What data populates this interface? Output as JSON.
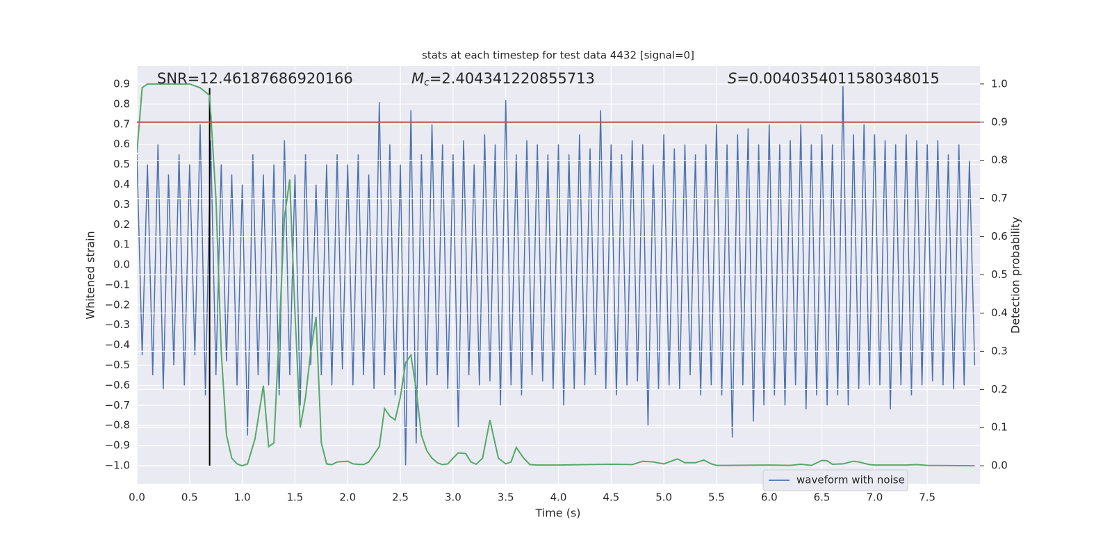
{
  "chart_data": {
    "type": "line",
    "title": "stats at each timestep for test data 4432 [signal=0]",
    "xlabel": "Time (s)",
    "ylabel": "Whitened strain",
    "y2label": "Detection probability",
    "annotations": [
      {
        "label": "SNR",
        "value": "=12.46187686920166",
        "italic": false
      },
      {
        "label": "M",
        "sub": "c",
        "value": "=2.404341220855713",
        "italic": true
      },
      {
        "label": "S",
        "value": "=0.0040354011580348015",
        "italic": true
      }
    ],
    "xlim": [
      0,
      8.0
    ],
    "ylim": [
      -1.09,
      0.99
    ],
    "y2lim": [
      -0.047,
      1.047
    ],
    "grid": true,
    "legend": "lower right",
    "xticks": [
      {
        "value": 0,
        "label": "0.0"
      },
      {
        "value": 0.5,
        "label": "0.5"
      },
      {
        "value": 1,
        "label": "1.0"
      },
      {
        "value": 1.5,
        "label": "1.5"
      },
      {
        "value": 2,
        "label": "2.0"
      },
      {
        "value": 2.5,
        "label": "2.5"
      },
      {
        "value": 3,
        "label": "3.0"
      },
      {
        "value": 3.5,
        "label": "3.5"
      },
      {
        "value": 4,
        "label": "4.0"
      },
      {
        "value": 4.5,
        "label": "4.5"
      },
      {
        "value": 5,
        "label": "5.0"
      },
      {
        "value": 5.5,
        "label": "5.5"
      },
      {
        "value": 6,
        "label": "6.0"
      },
      {
        "value": 6.5,
        "label": "6.5"
      },
      {
        "value": 7,
        "label": "7.0"
      },
      {
        "value": 7.5,
        "label": "7.5"
      }
    ],
    "yticks": [
      {
        "value": -1.0,
        "label": "−1.0"
      },
      {
        "value": -0.9,
        "label": "−0.9"
      },
      {
        "value": -0.8,
        "label": "−0.8"
      },
      {
        "value": -0.7,
        "label": "−0.7"
      },
      {
        "value": -0.6,
        "label": "−0.6"
      },
      {
        "value": -0.5,
        "label": "−0.5"
      },
      {
        "value": -0.4,
        "label": "−0.4"
      },
      {
        "value": -0.3,
        "label": "−0.3"
      },
      {
        "value": -0.2,
        "label": "−0.2"
      },
      {
        "value": -0.1,
        "label": "−0.1"
      },
      {
        "value": 0,
        "label": "0.0"
      },
      {
        "value": 0.1,
        "label": "0.1"
      },
      {
        "value": 0.2,
        "label": "0.2"
      },
      {
        "value": 0.3,
        "label": "0.3"
      },
      {
        "value": 0.4,
        "label": "0.4"
      },
      {
        "value": 0.5,
        "label": "0.5"
      },
      {
        "value": 0.6,
        "label": "0.6"
      },
      {
        "value": 0.7,
        "label": "0.7"
      },
      {
        "value": 0.8,
        "label": "0.8"
      },
      {
        "value": 0.9,
        "label": "0.9"
      }
    ],
    "y2ticks": [
      {
        "value": 0,
        "label": "0.0"
      },
      {
        "value": 0.1,
        "label": "0.1"
      },
      {
        "value": 0.2,
        "label": "0.2"
      },
      {
        "value": 0.3,
        "label": "0.3"
      },
      {
        "value": 0.4,
        "label": "0.4"
      },
      {
        "value": 0.5,
        "label": "0.5"
      },
      {
        "value": 0.6,
        "label": "0.6"
      },
      {
        "value": 0.7,
        "label": "0.7"
      },
      {
        "value": 0.8,
        "label": "0.8"
      },
      {
        "value": 0.9,
        "label": "0.9"
      },
      {
        "value": 1,
        "label": "1.0"
      }
    ],
    "threshold": 0.9,
    "threshold_color": "#c44e52",
    "marker": {
      "x": 0.69,
      "ylim": [
        -1.0,
        0.88
      ],
      "color": "#000000"
    },
    "series": [
      {
        "name": "waveform with noise",
        "color": "#4c72b0",
        "x": [
          0,
          0.05,
          0.1,
          0.15,
          0.2,
          0.25,
          0.3,
          0.35,
          0.4,
          0.45,
          0.5,
          0.55,
          0.6,
          0.65,
          0.7,
          0.75,
          0.8,
          0.85,
          0.9,
          0.95,
          1.0,
          1.05,
          1.1,
          1.15,
          1.2,
          1.25,
          1.3,
          1.35,
          1.4,
          1.45,
          1.5,
          1.55,
          1.6,
          1.65,
          1.7,
          1.75,
          1.8,
          1.85,
          1.9,
          1.95,
          2.0,
          2.05,
          2.1,
          2.15,
          2.2,
          2.25,
          2.3,
          2.35,
          2.4,
          2.45,
          2.5,
          2.55,
          2.6,
          2.65,
          2.7,
          2.75,
          2.8,
          2.85,
          2.9,
          2.95,
          3.0,
          3.05,
          3.1,
          3.15,
          3.2,
          3.25,
          3.3,
          3.35,
          3.4,
          3.45,
          3.5,
          3.55,
          3.6,
          3.65,
          3.7,
          3.75,
          3.8,
          3.85,
          3.9,
          3.95,
          4.0,
          4.05,
          4.1,
          4.15,
          4.2,
          4.25,
          4.3,
          4.35,
          4.4,
          4.45,
          4.5,
          4.55,
          4.6,
          4.65,
          4.7,
          4.75,
          4.8,
          4.85,
          4.9,
          4.95,
          5.0,
          5.05,
          5.1,
          5.15,
          5.2,
          5.25,
          5.3,
          5.35,
          5.4,
          5.45,
          5.5,
          5.55,
          5.6,
          5.65,
          5.7,
          5.75,
          5.8,
          5.85,
          5.9,
          5.95,
          6.0,
          6.05,
          6.1,
          6.15,
          6.2,
          6.25,
          6.3,
          6.35,
          6.4,
          6.45,
          6.5,
          6.55,
          6.6,
          6.65,
          6.7,
          6.75,
          6.8,
          6.85,
          6.9,
          6.95,
          7.0,
          7.05,
          7.1,
          7.15,
          7.2,
          7.25,
          7.3,
          7.35,
          7.4,
          7.45,
          7.5,
          7.55,
          7.6,
          7.65,
          7.7,
          7.75,
          7.8,
          7.85,
          7.9,
          7.95
        ],
        "values": [
          0.55,
          -0.45,
          0.5,
          -0.55,
          0.6,
          -0.62,
          0.45,
          -0.5,
          0.55,
          -0.6,
          0.5,
          -0.45,
          0.7,
          -0.65,
          0.62,
          -0.55,
          0.5,
          -0.48,
          0.45,
          -0.6,
          0.4,
          -0.85,
          0.55,
          -0.55,
          0.45,
          -0.6,
          0.5,
          -0.65,
          0.62,
          -0.55,
          0.45,
          -0.7,
          0.55,
          -0.5,
          0.4,
          -0.55,
          0.5,
          -0.6,
          0.55,
          -0.52,
          0.5,
          -0.6,
          0.55,
          -0.55,
          0.45,
          -0.62,
          0.81,
          -0.55,
          0.6,
          -0.65,
          0.5,
          -1.0,
          0.77,
          -0.89,
          0.55,
          -0.6,
          0.7,
          -0.55,
          0.6,
          -0.62,
          0.55,
          -0.81,
          0.62,
          -0.55,
          0.5,
          -0.6,
          0.65,
          -0.58,
          0.6,
          -0.7,
          0.82,
          -0.6,
          0.55,
          -0.65,
          0.62,
          -0.55,
          0.6,
          -0.58,
          0.55,
          -0.62,
          0.6,
          -0.7,
          0.55,
          -0.62,
          0.65,
          -0.6,
          0.58,
          -0.55,
          0.77,
          -0.62,
          0.6,
          -0.65,
          0.55,
          -0.6,
          0.62,
          -0.58,
          0.6,
          -0.8,
          0.5,
          -0.62,
          0.65,
          -0.6,
          0.58,
          -0.62,
          0.6,
          -0.55,
          0.55,
          -0.65,
          0.6,
          -0.6,
          0.7,
          -0.65,
          0.6,
          -0.86,
          0.65,
          -0.6,
          0.68,
          -0.78,
          0.6,
          -0.7,
          0.7,
          -0.65,
          0.6,
          -0.7,
          0.62,
          -0.6,
          0.7,
          -0.72,
          0.6,
          -0.65,
          0.65,
          -0.7,
          0.6,
          -0.65,
          0.89,
          -0.7,
          0.65,
          -0.62,
          0.7,
          -0.6,
          0.65,
          -0.6,
          0.62,
          -0.72,
          0.6,
          -0.6,
          0.65,
          -0.65,
          0.62,
          -0.6,
          0.6,
          -0.58,
          0.62,
          -0.6,
          0.55,
          -0.62,
          0.6,
          -0.6,
          0.52,
          -0.5
        ]
      },
      {
        "color": "#55a868",
        "axis": "y2",
        "x": [
          0,
          0.05,
          0.1,
          0.5,
          0.6,
          0.69,
          0.75,
          0.8,
          0.85,
          0.9,
          0.95,
          1.0,
          1.05,
          1.12,
          1.2,
          1.25,
          1.3,
          1.35,
          1.4,
          1.45,
          1.5,
          1.55,
          1.6,
          1.65,
          1.7,
          1.75,
          1.8,
          1.85,
          1.9,
          2.0,
          2.05,
          2.15,
          2.2,
          2.3,
          2.35,
          2.4,
          2.45,
          2.5,
          2.55,
          2.6,
          2.65,
          2.7,
          2.75,
          2.8,
          2.85,
          2.9,
          2.95,
          3.0,
          3.05,
          3.12,
          3.17,
          3.22,
          3.28,
          3.35,
          3.43,
          3.5,
          3.55,
          3.6,
          3.67,
          3.73,
          3.8,
          3.9,
          4.0,
          4.5,
          4.7,
          4.8,
          4.9,
          5.0,
          5.13,
          5.2,
          5.3,
          5.38,
          5.45,
          5.5,
          5.6,
          6.0,
          6.2,
          6.3,
          6.4,
          6.5,
          6.55,
          6.6,
          6.7,
          6.8,
          6.85,
          6.95,
          7.0,
          7.3,
          7.4,
          7.5,
          7.95
        ],
        "values": [
          0.82,
          0.99,
          1.0,
          1.0,
          0.99,
          0.97,
          0.7,
          0.3,
          0.08,
          0.02,
          0.005,
          0.0,
          0.005,
          0.07,
          0.21,
          0.05,
          0.06,
          0.35,
          0.65,
          0.75,
          0.4,
          0.1,
          0.18,
          0.3,
          0.39,
          0.06,
          0.005,
          0.003,
          0.01,
          0.012,
          0.005,
          0.003,
          0.01,
          0.05,
          0.15,
          0.13,
          0.12,
          0.18,
          0.27,
          0.29,
          0.2,
          0.08,
          0.04,
          0.02,
          0.008,
          0.003,
          0.005,
          0.02,
          0.034,
          0.032,
          0.01,
          0.004,
          0.02,
          0.12,
          0.02,
          0.005,
          0.01,
          0.048,
          0.02,
          0.003,
          0.002,
          0.002,
          0.002,
          0.004,
          0.003,
          0.012,
          0.01,
          0.005,
          0.018,
          0.008,
          0.008,
          0.015,
          0.005,
          0.001,
          0.001,
          0.002,
          0.001,
          0.004,
          0.001,
          0.014,
          0.013,
          0.004,
          0.005,
          0.012,
          0.01,
          0.003,
          0.002,
          0.002,
          0.003,
          0.001,
          0.0
        ]
      }
    ]
  }
}
